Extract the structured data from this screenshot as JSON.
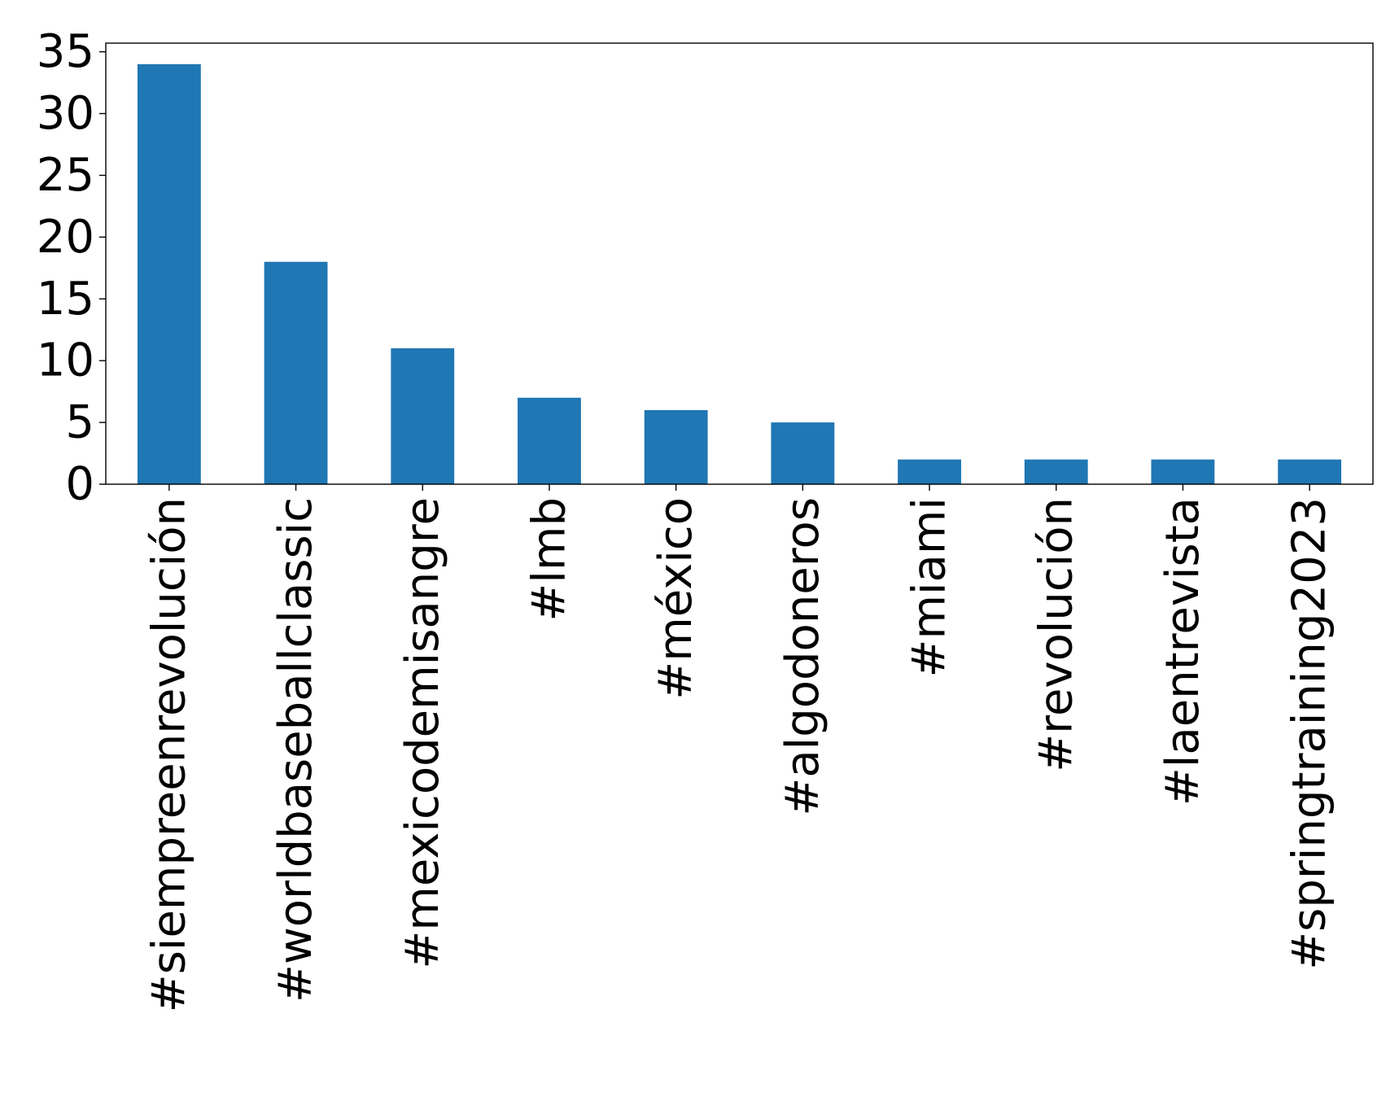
{
  "chart_data": {
    "type": "bar",
    "title": "",
    "xlabel": "",
    "ylabel": "",
    "categories": [
      "#siempreenrevolución",
      "#worldbaseballclassic",
      "#mexicodemisangre",
      "#lmb",
      "#méxico",
      "#algodoneros",
      "#miami",
      "#revolución",
      "#laentrevista",
      "#springtraining2023"
    ],
    "values": [
      34,
      18,
      11,
      7,
      6,
      5,
      2,
      2,
      2,
      2
    ],
    "ylim": [
      0,
      35.7
    ],
    "yticks": [
      0,
      5,
      10,
      15,
      20,
      25,
      30,
      35
    ],
    "ytick_labels": [
      "0",
      "5",
      "10",
      "15",
      "20",
      "25",
      "30",
      "35"
    ],
    "grid": false,
    "legend": "none",
    "bar_color": "#1f77b4"
  }
}
